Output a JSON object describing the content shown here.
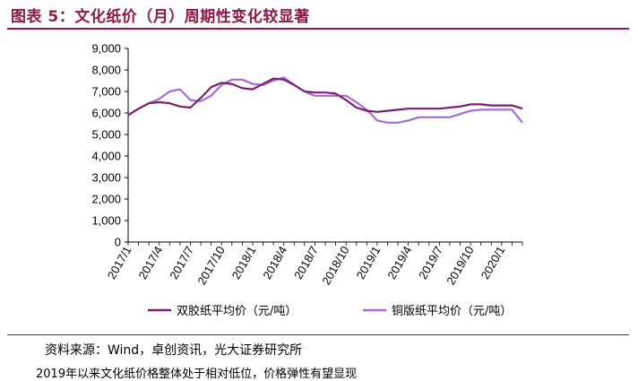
{
  "figure": {
    "title": "图表 5：文化纸价（月）周期性变化较显著",
    "source": "资料来源：Wind，卓创资讯，光大证券研究所",
    "next_text": "2019年以来文化纸价格整体处于相对低位，价格弹性有望显现"
  },
  "chart_data": {
    "type": "line",
    "title": "",
    "xlabel": "",
    "ylabel": "",
    "ylim": [
      0,
      9000
    ],
    "yticks": [
      0,
      1000,
      2000,
      3000,
      4000,
      5000,
      6000,
      7000,
      8000,
      9000
    ],
    "ytick_labels": [
      "0",
      "1,000",
      "2,000",
      "3,000",
      "4,000",
      "5,000",
      "6,000",
      "7,000",
      "8,000",
      "9,000"
    ],
    "x": [
      "2017/1",
      "2017/2",
      "2017/3",
      "2017/4",
      "2017/5",
      "2017/6",
      "2017/7",
      "2017/8",
      "2017/9",
      "2017/10",
      "2017/11",
      "2017/12",
      "2018/1",
      "2018/2",
      "2018/3",
      "2018/4",
      "2018/5",
      "2018/6",
      "2018/7",
      "2018/8",
      "2018/9",
      "2018/10",
      "2018/11",
      "2018/12",
      "2019/1",
      "2019/2",
      "2019/3",
      "2019/4",
      "2019/5",
      "2019/6",
      "2019/7",
      "2019/8",
      "2019/9",
      "2019/10",
      "2019/11",
      "2019/12",
      "2020/1",
      "2020/2",
      "2020/3"
    ],
    "xtick_labels": [
      "2017/1",
      "2017/4",
      "2017/7",
      "2017/10",
      "2018/1",
      "2018/4",
      "2018/7",
      "2018/10",
      "2019/1",
      "2019/4",
      "2019/7",
      "2019/10",
      "2020/1"
    ],
    "grid": false,
    "legend": "bottom",
    "series": [
      {
        "name": "双胶纸平均价（元/吨）",
        "color": "#7B1E6E",
        "values": [
          5900,
          6200,
          6450,
          6500,
          6450,
          6300,
          6250,
          6700,
          7200,
          7400,
          7350,
          7150,
          7100,
          7350,
          7600,
          7550,
          7300,
          7000,
          6950,
          6950,
          6900,
          6600,
          6250,
          6100,
          6050,
          6100,
          6150,
          6200,
          6200,
          6200,
          6200,
          6250,
          6300,
          6400,
          6400,
          6350,
          6350,
          6350,
          6200
        ]
      },
      {
        "name": "铜版纸平均价（元/吨）",
        "color": "#A66BD6",
        "values": [
          5900,
          6200,
          6450,
          6650,
          7000,
          7100,
          6600,
          6550,
          6800,
          7300,
          7550,
          7550,
          7350,
          7300,
          7500,
          7650,
          7300,
          7000,
          6800,
          6800,
          6800,
          6800,
          6500,
          6150,
          5650,
          5550,
          5550,
          5650,
          5800,
          5800,
          5800,
          5800,
          5950,
          6100,
          6150,
          6150,
          6150,
          6150,
          5550
        ]
      }
    ]
  }
}
